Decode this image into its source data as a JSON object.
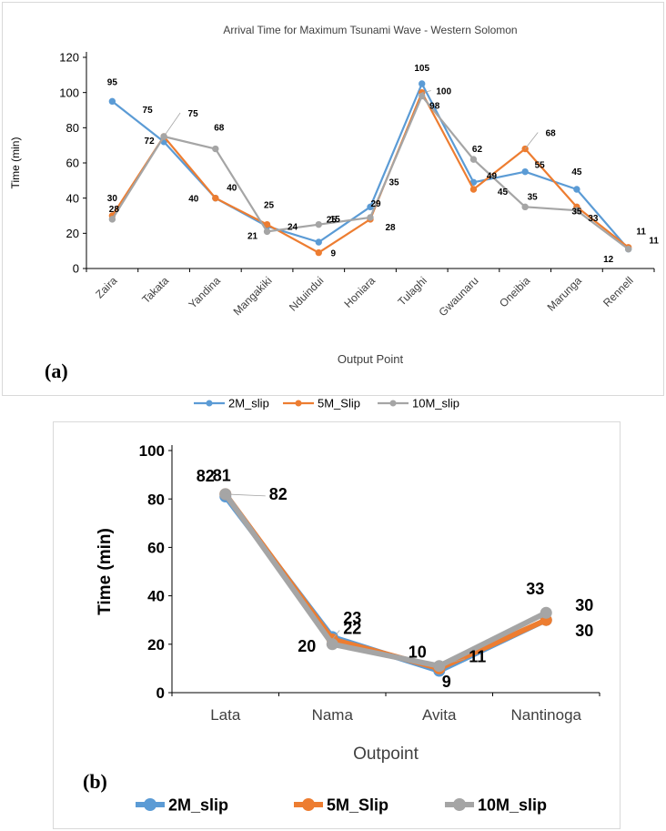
{
  "chart_data": [
    {
      "type": "line",
      "panel_label": "(a)",
      "title": "Arrival Time for Maximum Tsunami Wave - Western Solomon",
      "xlabel": "Output Point",
      "ylabel": "Time (min)",
      "ylim": [
        0,
        120
      ],
      "yticks": [
        0,
        20,
        40,
        60,
        80,
        100,
        120
      ],
      "grid": false,
      "legend_position": "bottom",
      "categories": [
        "Zaira",
        "Takata",
        "Yandina",
        "Mangakiki",
        "Nduindui",
        "Honiara",
        "Tulaghi",
        "Gwaunaru",
        "Oneibia",
        "Marunga",
        "Rennell"
      ],
      "series": [
        {
          "name": "2M_slip",
          "color": "#5b9bd5",
          "values": [
            95,
            72,
            40,
            24,
            15,
            35,
            105,
            49,
            55,
            45,
            11
          ],
          "labels": [
            "95",
            "72",
            "40",
            "24",
            "15",
            "35",
            "105",
            "49",
            "55",
            "45",
            "11"
          ]
        },
        {
          "name": "5M_Slip",
          "color": "#ed7d31",
          "values": [
            30,
            75,
            40,
            25,
            9,
            28,
            100,
            45,
            68,
            35,
            12
          ],
          "labels": [
            "30",
            "75",
            "40",
            "25",
            "9",
            "28",
            "100",
            "45",
            "68",
            "35",
            "12"
          ]
        },
        {
          "name": "10M_slip",
          "color": "#a5a5a5",
          "values": [
            28,
            75,
            68,
            21,
            25,
            29,
            98,
            62,
            35,
            33,
            11
          ],
          "labels": [
            "28",
            "75",
            "68",
            "21",
            "25",
            "29",
            "98",
            "62",
            "35",
            "33",
            "11"
          ]
        }
      ]
    },
    {
      "type": "line",
      "panel_label": "(b)",
      "title": "",
      "xlabel": "Outpoint",
      "ylabel": "Time (min)",
      "ylim": [
        0,
        100
      ],
      "yticks": [
        0,
        20,
        40,
        60,
        80,
        100
      ],
      "grid": false,
      "legend_position": "bottom",
      "categories": [
        "Lata",
        "Nama",
        "Avita",
        "Nantinoga"
      ],
      "series": [
        {
          "name": "2M_slip",
          "color": "#5b9bd5",
          "values": [
            81,
            23,
            9,
            30
          ],
          "labels": [
            "81",
            "23",
            "9",
            "30"
          ]
        },
        {
          "name": "5M_Slip",
          "color": "#ed7d31",
          "values": [
            82,
            22,
            10,
            30
          ],
          "labels": [
            "82",
            "22",
            "10",
            "30"
          ]
        },
        {
          "name": "10M_slip",
          "color": "#a5a5a5",
          "values": [
            82,
            20,
            11,
            33
          ],
          "labels": [
            "82",
            "20",
            "11",
            "33"
          ]
        }
      ]
    }
  ]
}
